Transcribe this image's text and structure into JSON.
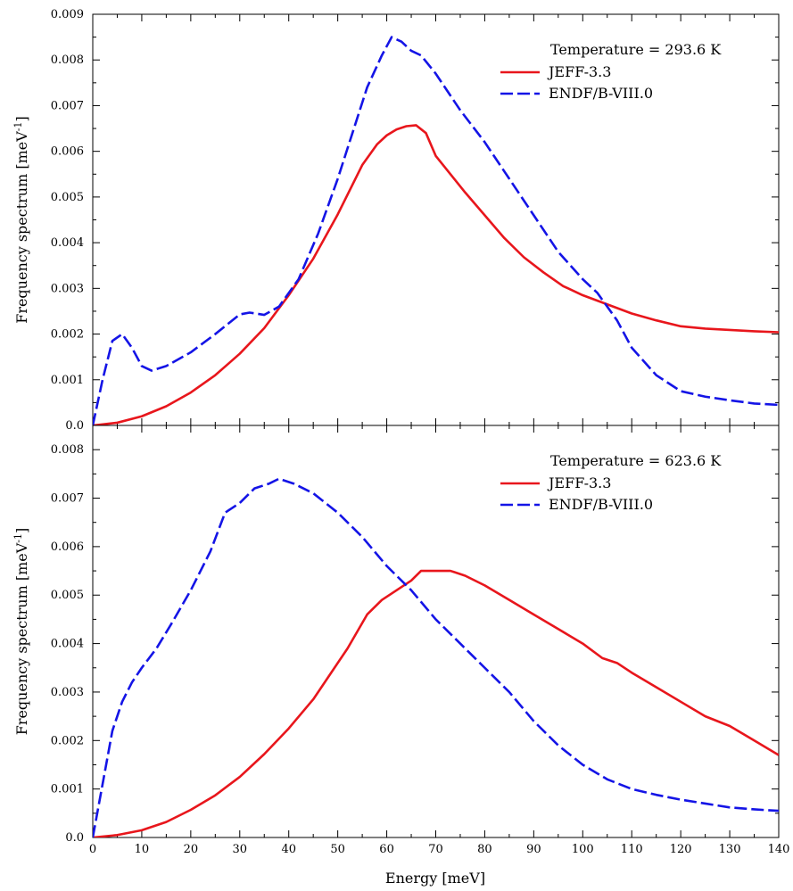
{
  "chart_data": [
    {
      "type": "line",
      "xlabel": "",
      "ylabel": "Frequency spectrum [meV",
      "ylabel_superscript": "-1",
      "ylabel_suffix": "]",
      "xlim": [
        0,
        140
      ],
      "ylim": [
        0,
        0.009
      ],
      "x_ticks": [
        0,
        10,
        20,
        30,
        40,
        50,
        60,
        70,
        80,
        90,
        100,
        110,
        120,
        130,
        140
      ],
      "y_ticks": [
        0.0,
        0.001,
        0.002,
        0.003,
        0.004,
        0.005,
        0.006,
        0.007,
        0.008,
        0.009
      ],
      "y_tick_labels": [
        "0.0",
        "0.001",
        "0.002",
        "0.003",
        "0.004",
        "0.005",
        "0.006",
        "0.007",
        "0.008",
        "0.009"
      ],
      "grid": false,
      "legend_placement": "top-right",
      "legend_header": "Temperature = 293.6 K",
      "series": [
        {
          "name": "JEFF-3.3",
          "color": "#e8161c",
          "dash": "solid",
          "points": [
            [
              0,
              0
            ],
            [
              5,
              6e-05
            ],
            [
              10,
              0.0002
            ],
            [
              15,
              0.00042
            ],
            [
              20,
              0.00072
            ],
            [
              25,
              0.0011
            ],
            [
              30,
              0.00157
            ],
            [
              35,
              0.00213
            ],
            [
              40,
              0.00285
            ],
            [
              45,
              0.00365
            ],
            [
              50,
              0.00462
            ],
            [
              55,
              0.0057
            ],
            [
              58,
              0.00615
            ],
            [
              60,
              0.00635
            ],
            [
              62,
              0.00648
            ],
            [
              64,
              0.00655
            ],
            [
              66,
              0.00657
            ],
            [
              68,
              0.0064
            ],
            [
              70,
              0.0059
            ],
            [
              73,
              0.0055
            ],
            [
              76,
              0.0051
            ],
            [
              80,
              0.0046
            ],
            [
              84,
              0.0041
            ],
            [
              88,
              0.00368
            ],
            [
              92,
              0.00335
            ],
            [
              96,
              0.00305
            ],
            [
              100,
              0.00285
            ],
            [
              105,
              0.00265
            ],
            [
              110,
              0.00245
            ],
            [
              115,
              0.0023
            ],
            [
              120,
              0.00217
            ],
            [
              125,
              0.00212
            ],
            [
              130,
              0.00209
            ],
            [
              135,
              0.00206
            ],
            [
              140,
              0.00204
            ]
          ]
        },
        {
          "name": "ENDF/B-VIII.0",
          "color": "#1414e6",
          "dash": "dashed",
          "points": [
            [
              0,
              0
            ],
            [
              2,
              0.001
            ],
            [
              4,
              0.00185
            ],
            [
              6,
              0.002
            ],
            [
              8,
              0.0017
            ],
            [
              10,
              0.0013
            ],
            [
              12,
              0.0012
            ],
            [
              15,
              0.0013
            ],
            [
              20,
              0.0016
            ],
            [
              25,
              0.002
            ],
            [
              30,
              0.00243
            ],
            [
              32,
              0.00247
            ],
            [
              35,
              0.00242
            ],
            [
              38,
              0.0026
            ],
            [
              42,
              0.0032
            ],
            [
              46,
              0.0042
            ],
            [
              50,
              0.0054
            ],
            [
              53,
              0.0064
            ],
            [
              56,
              0.0074
            ],
            [
              59,
              0.0081
            ],
            [
              61,
              0.0085
            ],
            [
              63,
              0.0084
            ],
            [
              65,
              0.0082
            ],
            [
              67,
              0.0081
            ],
            [
              70,
              0.0077
            ],
            [
              75,
              0.0069
            ],
            [
              80,
              0.0062
            ],
            [
              85,
              0.0054
            ],
            [
              90,
              0.0046
            ],
            [
              95,
              0.0038
            ],
            [
              100,
              0.0032
            ],
            [
              103,
              0.0029
            ],
            [
              107,
              0.0023
            ],
            [
              110,
              0.0017
            ],
            [
              115,
              0.0011
            ],
            [
              120,
              0.00075
            ],
            [
              125,
              0.00063
            ],
            [
              130,
              0.00055
            ],
            [
              135,
              0.00048
            ],
            [
              140,
              0.00045
            ]
          ]
        }
      ]
    },
    {
      "type": "line",
      "xlabel": "Energy [meV]",
      "ylabel": "Frequency spectrum [meV",
      "ylabel_superscript": "-1",
      "ylabel_suffix": "]",
      "xlim": [
        0,
        140
      ],
      "ylim": [
        0,
        0.0085
      ],
      "x_ticks": [
        0,
        10,
        20,
        30,
        40,
        50,
        60,
        70,
        80,
        90,
        100,
        110,
        120,
        130,
        140
      ],
      "y_ticks": [
        0.0,
        0.001,
        0.002,
        0.003,
        0.004,
        0.005,
        0.006,
        0.007,
        0.008
      ],
      "y_tick_labels": [
        "0.0",
        "0.001",
        "0.002",
        "0.003",
        "0.004",
        "0.005",
        "0.006",
        "0.007",
        "0.008"
      ],
      "grid": false,
      "legend_placement": "top-right",
      "legend_header": "Temperature = 623.6 K",
      "series": [
        {
          "name": "JEFF-3.3",
          "color": "#e8161c",
          "dash": "solid",
          "points": [
            [
              0,
              0
            ],
            [
              5,
              5e-05
            ],
            [
              10,
              0.00015
            ],
            [
              15,
              0.00032
            ],
            [
              20,
              0.00057
            ],
            [
              25,
              0.00087
            ],
            [
              30,
              0.00125
            ],
            [
              35,
              0.00172
            ],
            [
              40,
              0.00225
            ],
            [
              45,
              0.00285
            ],
            [
              48,
              0.0033
            ],
            [
              52,
              0.0039
            ],
            [
              56,
              0.0046
            ],
            [
              59,
              0.0049
            ],
            [
              62,
              0.0051
            ],
            [
              65,
              0.0053
            ],
            [
              67,
              0.0055
            ],
            [
              70,
              0.0055
            ],
            [
              73,
              0.0055
            ],
            [
              76,
              0.0054
            ],
            [
              80,
              0.0052
            ],
            [
              85,
              0.0049
            ],
            [
              90,
              0.0046
            ],
            [
              95,
              0.0043
            ],
            [
              100,
              0.004
            ],
            [
              104,
              0.0037
            ],
            [
              107,
              0.0036
            ],
            [
              110,
              0.0034
            ],
            [
              115,
              0.0031
            ],
            [
              120,
              0.0028
            ],
            [
              125,
              0.0025
            ],
            [
              130,
              0.0023
            ],
            [
              135,
              0.002
            ],
            [
              140,
              0.0017
            ]
          ]
        },
        {
          "name": "ENDF/B-VIII.0",
          "color": "#1414e6",
          "dash": "dashed",
          "points": [
            [
              0,
              0
            ],
            [
              2,
              0.0011
            ],
            [
              4,
              0.0022
            ],
            [
              6,
              0.0028
            ],
            [
              8,
              0.0032
            ],
            [
              10,
              0.0035
            ],
            [
              13,
              0.0039
            ],
            [
              16,
              0.0044
            ],
            [
              20,
              0.0051
            ],
            [
              24,
              0.0059
            ],
            [
              27,
              0.0067
            ],
            [
              30,
              0.0069
            ],
            [
              33,
              0.0072
            ],
            [
              36,
              0.0073
            ],
            [
              38,
              0.0074
            ],
            [
              41,
              0.0073
            ],
            [
              45,
              0.0071
            ],
            [
              50,
              0.0067
            ],
            [
              55,
              0.0062
            ],
            [
              60,
              0.0056
            ],
            [
              65,
              0.0051
            ],
            [
              70,
              0.0045
            ],
            [
              75,
              0.004
            ],
            [
              80,
              0.0035
            ],
            [
              85,
              0.003
            ],
            [
              90,
              0.0024
            ],
            [
              95,
              0.0019
            ],
            [
              100,
              0.0015
            ],
            [
              105,
              0.0012
            ],
            [
              110,
              0.001
            ],
            [
              115,
              0.00088
            ],
            [
              120,
              0.00078
            ],
            [
              125,
              0.0007
            ],
            [
              130,
              0.00062
            ],
            [
              135,
              0.00058
            ],
            [
              140,
              0.00055
            ]
          ]
        }
      ]
    }
  ]
}
